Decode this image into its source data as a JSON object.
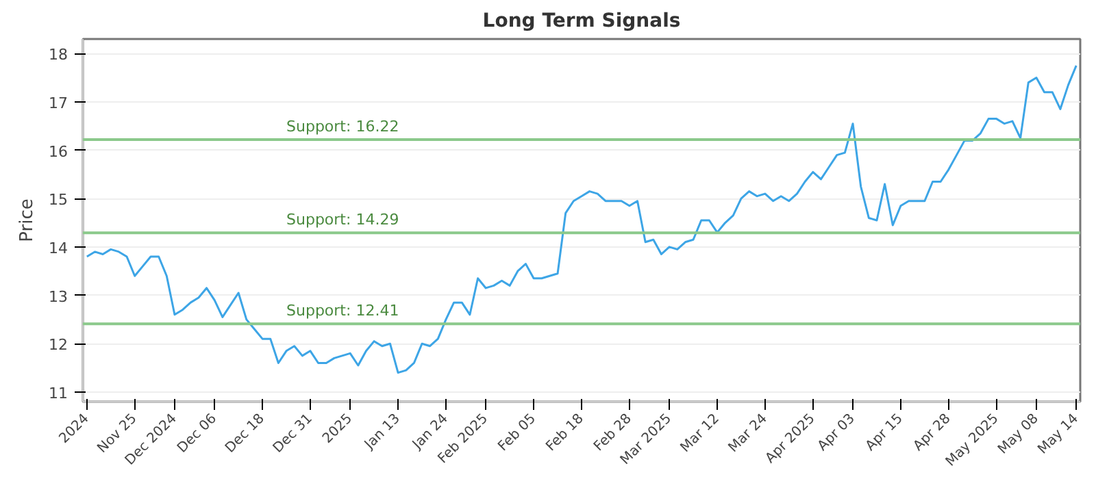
{
  "chart_data": {
    "type": "line",
    "title": "Long Term Signals",
    "ylabel": "Price",
    "categories": [
      "2024",
      null,
      null,
      null,
      null,
      null,
      "Nov 25",
      null,
      null,
      null,
      null,
      "Dec 2024",
      null,
      null,
      null,
      null,
      "Dec 06",
      null,
      null,
      null,
      null,
      null,
      "Dec 18",
      null,
      null,
      null,
      null,
      null,
      "Dec 31",
      null,
      null,
      null,
      null,
      "2025",
      null,
      null,
      null,
      null,
      null,
      "Jan 13",
      null,
      null,
      null,
      null,
      null,
      "Jan 24",
      null,
      null,
      null,
      null,
      "Feb 2025",
      null,
      null,
      null,
      null,
      null,
      "Feb 05",
      null,
      null,
      null,
      null,
      null,
      "Feb 18",
      null,
      null,
      null,
      null,
      null,
      "Feb 28",
      null,
      null,
      null,
      null,
      "Mar 2025",
      null,
      null,
      null,
      null,
      null,
      "Mar 12",
      null,
      null,
      null,
      null,
      null,
      "Mar 24",
      null,
      null,
      null,
      null,
      null,
      "Apr 2025",
      null,
      null,
      null,
      null,
      "Apr 03",
      null,
      null,
      null,
      null,
      null,
      "Apr 15",
      null,
      null,
      null,
      null,
      null,
      "Apr 28",
      null,
      null,
      null,
      null,
      null,
      "May 2025",
      null,
      null,
      null,
      null,
      "May 08",
      null,
      null,
      null,
      null,
      "May 14"
    ],
    "series": [
      {
        "color": "#3da5e6",
        "values": [
          13.8,
          13.9,
          13.85,
          13.95,
          13.9,
          13.8,
          13.4,
          13.6,
          13.8,
          13.8,
          13.4,
          12.6,
          12.7,
          12.85,
          12.95,
          13.15,
          12.9,
          12.55,
          12.8,
          13.05,
          12.5,
          12.3,
          12.1,
          12.1,
          11.6,
          11.85,
          11.95,
          11.75,
          11.85,
          11.6,
          11.6,
          11.7,
          11.75,
          11.8,
          11.55,
          11.85,
          12.05,
          11.95,
          12.0,
          11.4,
          11.45,
          11.6,
          12.0,
          11.95,
          12.1,
          12.5,
          12.85,
          12.85,
          12.6,
          13.35,
          13.15,
          13.2,
          13.3,
          13.2,
          13.5,
          13.65,
          13.35,
          13.35,
          13.4,
          13.45,
          14.7,
          14.95,
          15.05,
          15.15,
          15.1,
          14.95,
          14.95,
          14.95,
          14.85,
          14.95,
          14.1,
          14.15,
          13.85,
          14.0,
          13.95,
          14.1,
          14.15,
          14.55,
          14.55,
          14.3,
          14.5,
          14.65,
          15.0,
          15.15,
          15.05,
          15.1,
          14.95,
          15.05,
          14.95,
          15.1,
          15.35,
          15.55,
          15.4,
          15.65,
          15.9,
          15.95,
          16.55,
          15.25,
          14.6,
          14.55,
          15.3,
          14.45,
          14.85,
          14.95,
          14.95,
          14.95,
          15.35,
          15.35,
          15.6,
          15.9,
          16.2,
          16.2,
          16.35,
          16.65,
          16.65,
          16.55,
          16.6,
          16.25,
          17.4,
          17.5,
          17.2,
          17.2,
          16.85,
          17.35,
          17.75
        ]
      }
    ],
    "ylim": [
      10.8,
      18.3
    ],
    "yticks": [
      11,
      12,
      13,
      14,
      15,
      16,
      17,
      18
    ],
    "grid": "y",
    "marker": "none",
    "line_style": "solid",
    "ref_lines": [
      {
        "axis": "y",
        "value": 16.22,
        "label": "Support: 16.22",
        "color": "#8bc98b"
      },
      {
        "axis": "y",
        "value": 14.29,
        "label": "Support: 14.29",
        "color": "#8bc98b"
      },
      {
        "axis": "y",
        "value": 12.41,
        "label": "Support: 12.41",
        "color": "#8bc98b"
      }
    ]
  }
}
